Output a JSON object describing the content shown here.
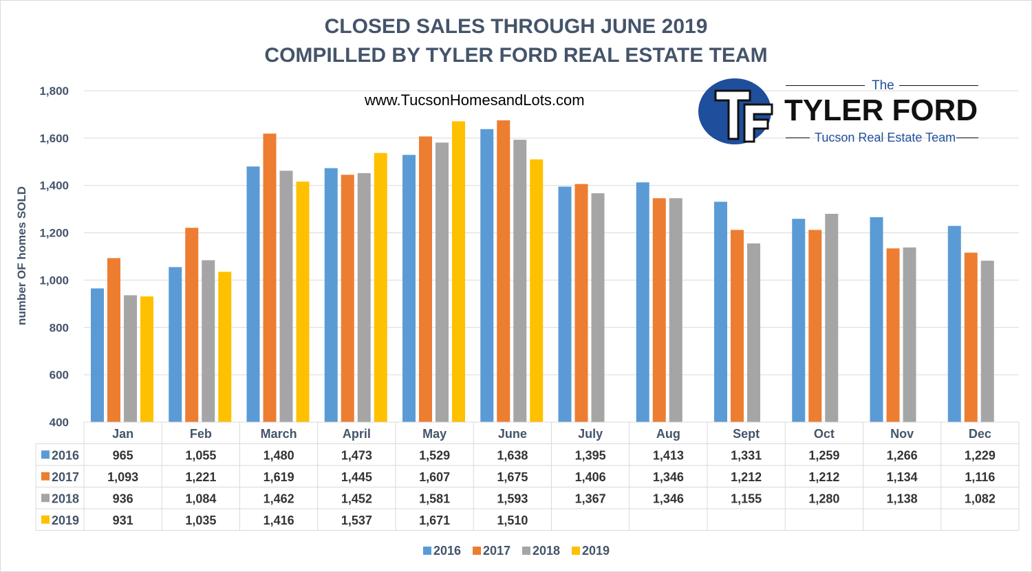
{
  "title_line1": "CLOSED SALES THROUGH JUNE 2019",
  "title_line2": "COMPILLED BY TYLER FORD REAL ESTATE TEAM",
  "website": "www.TucsonHomesandLots.com",
  "logo": {
    "the": "The",
    "name": "TYLER FORD",
    "subtitle": "Tucson Real Estate Team",
    "monogram": "TF"
  },
  "colors": {
    "2016": "#5b9bd5",
    "2017": "#ed7d31",
    "2018": "#a5a5a5",
    "2019": "#ffc000",
    "axis_text": "#44546a",
    "grid": "#d9d9d9",
    "logo_blue": "#1f4e9c"
  },
  "chart_data": {
    "type": "bar",
    "title": "CLOSED SALES THROUGH JUNE 2019",
    "ylabel": "number OF homes SOLD",
    "xlabel": "",
    "ylim": [
      400,
      1800
    ],
    "yticks": [
      400,
      600,
      800,
      1000,
      1200,
      1400,
      1600,
      1800
    ],
    "ytick_labels": [
      "400",
      "600",
      "800",
      "1,000",
      "1,200",
      "1,400",
      "1,600",
      "1,800"
    ],
    "grid": true,
    "legend": "bottom",
    "data_table": true,
    "categories": [
      "Jan",
      "Feb",
      "March",
      "April",
      "May",
      "June",
      "July",
      "Aug",
      "Sept",
      "Oct",
      "Nov",
      "Dec"
    ],
    "series": [
      {
        "name": "2016",
        "values": [
          965,
          1055,
          1480,
          1473,
          1529,
          1638,
          1395,
          1413,
          1331,
          1259,
          1266,
          1229
        ],
        "labels": [
          "965",
          "1,055",
          "1,480",
          "1,473",
          "1,529",
          "1,638",
          "1,395",
          "1,413",
          "1,331",
          "1,259",
          "1,266",
          "1,229"
        ]
      },
      {
        "name": "2017",
        "values": [
          1093,
          1221,
          1619,
          1445,
          1607,
          1675,
          1406,
          1346,
          1212,
          1212,
          1134,
          1116
        ],
        "labels": [
          "1,093",
          "1,221",
          "1,619",
          "1,445",
          "1,607",
          "1,675",
          "1,406",
          "1,346",
          "1,212",
          "1,212",
          "1,134",
          "1,116"
        ]
      },
      {
        "name": "2018",
        "values": [
          936,
          1084,
          1462,
          1452,
          1581,
          1593,
          1367,
          1346,
          1155,
          1280,
          1138,
          1082
        ],
        "labels": [
          "936",
          "1,084",
          "1,462",
          "1,452",
          "1,581",
          "1,593",
          "1,367",
          "1,346",
          "1,155",
          "1,280",
          "1,138",
          "1,082"
        ]
      },
      {
        "name": "2019",
        "values": [
          931,
          1035,
          1416,
          1537,
          1671,
          1510,
          null,
          null,
          null,
          null,
          null,
          null
        ],
        "labels": [
          "931",
          "1,035",
          "1,416",
          "1,537",
          "1,671",
          "1,510",
          "",
          "",
          "",
          "",
          "",
          ""
        ]
      }
    ]
  }
}
